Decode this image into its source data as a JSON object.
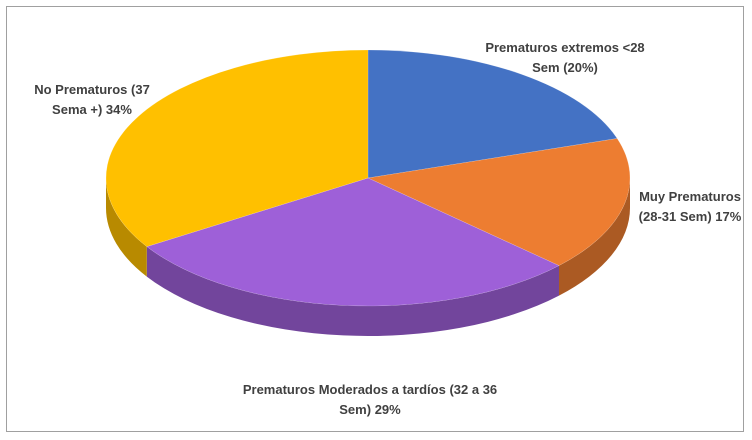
{
  "chart_data": {
    "type": "pie",
    "categories": [
      "Prematuros extremos <28 Sem",
      "Muy Prematuros (28-31 Sem)",
      "Prematuros Moderados a tardíos (32 a 36 Sem)",
      "No Prematuros (37 Sema +)"
    ],
    "values": [
      20,
      17,
      29,
      34
    ],
    "value_labels": [
      "(20%)",
      "17%",
      "29%",
      "34%"
    ],
    "colors": [
      "#4472c4",
      "#ed7d31",
      "#9e60d8",
      "#ffc000"
    ]
  }
}
